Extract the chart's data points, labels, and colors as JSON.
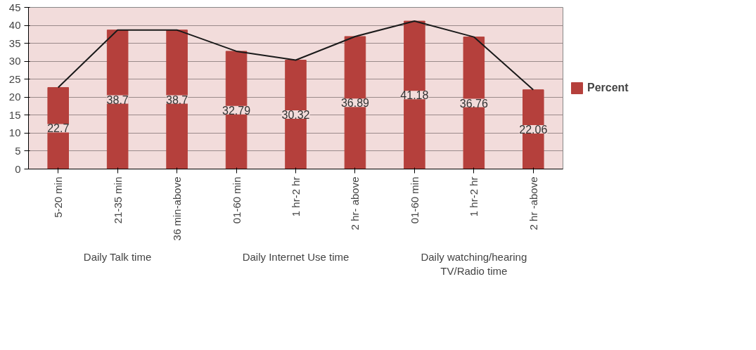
{
  "chart_data": {
    "type": "bar",
    "categories": [
      "5-20 min",
      "21-35 min",
      "36 min-above",
      "01-60 min",
      "1 hr-2 hr",
      "2 hr- above",
      "01-60 min",
      "1 hr-2 hr",
      "2 hr -above"
    ],
    "series": [
      {
        "name": "Percent",
        "color": "#b5403c",
        "values": [
          22.7,
          38.7,
          38.7,
          32.79,
          30.32,
          36.89,
          41.18,
          36.76,
          22.06
        ],
        "value_labels": [
          "22.7",
          "38.7",
          "38.7",
          "32.79",
          "30.32",
          "36.89",
          "41.18",
          "36.76",
          "22.06"
        ]
      },
      {
        "type": "line",
        "color": "#1a1a1a",
        "values": [
          22.7,
          38.7,
          38.7,
          32.79,
          30.32,
          36.89,
          41.18,
          36.76,
          22.06
        ]
      }
    ],
    "ylim": [
      0,
      45
    ],
    "yticks": [
      0,
      5,
      10,
      15,
      20,
      25,
      30,
      35,
      40,
      45
    ],
    "grid": "y",
    "legend": "right",
    "annotations": [
      "Daily Talk time",
      "Daily Internet Use time",
      "Daily watching/hearing\nTV/Radio time"
    ]
  }
}
